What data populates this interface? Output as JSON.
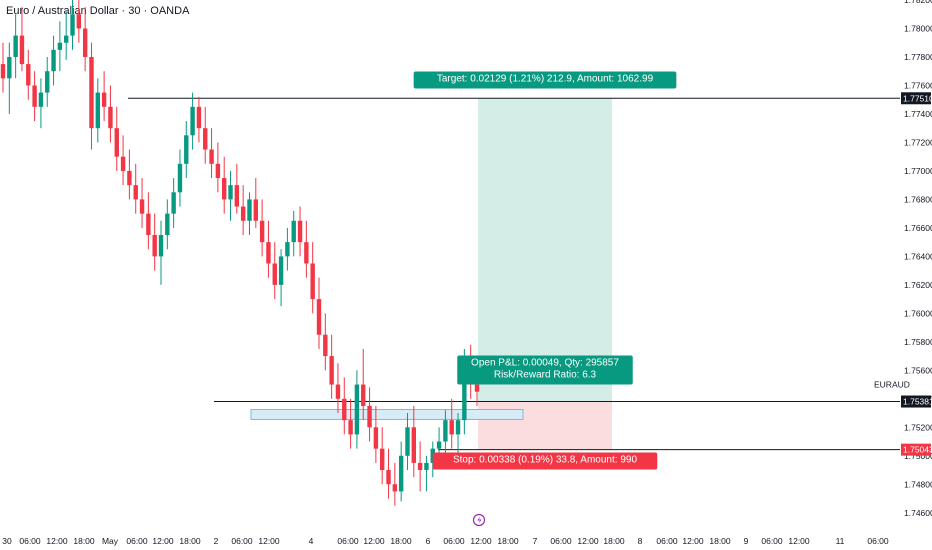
{
  "header": {
    "title": "Euro / Australian Dollar · 30 · OANDA"
  },
  "chart_data": {
    "type": "candlestick",
    "symbol": "EURAUD",
    "y_range": [
      1.745,
      1.782
    ],
    "y_ticks": [
      "1.74600",
      "1.74800",
      "1.75000",
      "1.75200",
      "1.75400",
      "1.75600",
      "1.75800",
      "1.76000",
      "1.76200",
      "1.76400",
      "1.76600",
      "1.76800",
      "1.77000",
      "1.77200",
      "1.77400",
      "1.77600",
      "1.77800",
      "1.78000",
      "1.78200"
    ],
    "x_ticks": [
      "30",
      "06:00",
      "12:00",
      "18:00",
      "May",
      "06:00",
      "12:00",
      "18:00",
      "2",
      "06:00",
      "12:00",
      "4",
      "06:00",
      "12:00",
      "18:00",
      "6",
      "06:00",
      "12:00",
      "18:00",
      "7",
      "06:00",
      "12:00",
      "18:00",
      "8",
      "06:00",
      "12:00",
      "18:00",
      "9",
      "06:00",
      "12:00",
      "11",
      "06:00"
    ],
    "candles": [
      [
        1.7775,
        1.779,
        1.7755,
        1.7765
      ],
      [
        1.7765,
        1.779,
        1.774,
        1.778
      ],
      [
        1.778,
        1.781,
        1.7765,
        1.7795
      ],
      [
        1.7795,
        1.7815,
        1.777,
        1.7775
      ],
      [
        1.7775,
        1.7785,
        1.775,
        1.776
      ],
      [
        1.776,
        1.777,
        1.7735,
        1.7745
      ],
      [
        1.7745,
        1.7765,
        1.773,
        1.7755
      ],
      [
        1.7755,
        1.778,
        1.7745,
        1.777
      ],
      [
        1.777,
        1.7795,
        1.776,
        1.7785
      ],
      [
        1.7785,
        1.7805,
        1.777,
        1.779
      ],
      [
        1.779,
        1.7812,
        1.7778,
        1.7795
      ],
      [
        1.7795,
        1.7825,
        1.7785,
        1.781
      ],
      [
        1.781,
        1.783,
        1.779,
        1.78
      ],
      [
        1.78,
        1.7815,
        1.777,
        1.778
      ],
      [
        1.778,
        1.779,
        1.7715,
        1.773
      ],
      [
        1.773,
        1.7765,
        1.772,
        1.7755
      ],
      [
        1.7755,
        1.777,
        1.7735,
        1.7745
      ],
      [
        1.7745,
        1.776,
        1.772,
        1.773
      ],
      [
        1.773,
        1.7745,
        1.77,
        1.771
      ],
      [
        1.771,
        1.7725,
        1.769,
        1.77
      ],
      [
        1.77,
        1.7715,
        1.768,
        1.769
      ],
      [
        1.769,
        1.7705,
        1.767,
        1.768
      ],
      [
        1.768,
        1.7695,
        1.766,
        1.767
      ],
      [
        1.767,
        1.7685,
        1.7645,
        1.7655
      ],
      [
        1.7655,
        1.767,
        1.763,
        1.764
      ],
      [
        1.764,
        1.7665,
        1.762,
        1.7655
      ],
      [
        1.7655,
        1.768,
        1.7645,
        1.767
      ],
      [
        1.767,
        1.7695,
        1.766,
        1.7685
      ],
      [
        1.7685,
        1.7715,
        1.7675,
        1.7705
      ],
      [
        1.7705,
        1.7735,
        1.7695,
        1.7725
      ],
      [
        1.7725,
        1.7755,
        1.7715,
        1.7745
      ],
      [
        1.7745,
        1.7752,
        1.772,
        1.773
      ],
      [
        1.773,
        1.7745,
        1.7705,
        1.7715
      ],
      [
        1.7715,
        1.773,
        1.7695,
        1.7705
      ],
      [
        1.7705,
        1.772,
        1.7685,
        1.7695
      ],
      [
        1.7695,
        1.771,
        1.767,
        1.768
      ],
      [
        1.768,
        1.77,
        1.7665,
        1.769
      ],
      [
        1.769,
        1.7705,
        1.767,
        1.7675
      ],
      [
        1.7675,
        1.769,
        1.7655,
        1.7665
      ],
      [
        1.7665,
        1.7685,
        1.7655,
        1.768
      ],
      [
        1.768,
        1.7695,
        1.766,
        1.7665
      ],
      [
        1.7665,
        1.768,
        1.764,
        1.765
      ],
      [
        1.765,
        1.7665,
        1.7625,
        1.7635
      ],
      [
        1.7635,
        1.765,
        1.761,
        1.762
      ],
      [
        1.762,
        1.7645,
        1.7605,
        1.764
      ],
      [
        1.764,
        1.766,
        1.763,
        1.765
      ],
      [
        1.765,
        1.7672,
        1.764,
        1.7665
      ],
      [
        1.7665,
        1.7675,
        1.764,
        1.765
      ],
      [
        1.765,
        1.7665,
        1.7625,
        1.7635
      ],
      [
        1.7635,
        1.765,
        1.76,
        1.761
      ],
      [
        1.761,
        1.7625,
        1.7575,
        1.7585
      ],
      [
        1.7585,
        1.76,
        1.756,
        1.757
      ],
      [
        1.757,
        1.7585,
        1.754,
        1.755
      ],
      [
        1.755,
        1.7565,
        1.753,
        1.754
      ],
      [
        1.754,
        1.7555,
        1.7515,
        1.7525
      ],
      [
        1.7525,
        1.754,
        1.7505,
        1.7515
      ],
      [
        1.7515,
        1.756,
        1.7505,
        1.755
      ],
      [
        1.755,
        1.7575,
        1.7525,
        1.7535
      ],
      [
        1.7535,
        1.7548,
        1.751,
        1.752
      ],
      [
        1.752,
        1.7535,
        1.7495,
        1.7505
      ],
      [
        1.7505,
        1.752,
        1.748,
        1.749
      ],
      [
        1.749,
        1.7505,
        1.747,
        1.748
      ],
      [
        1.748,
        1.7495,
        1.7465,
        1.7475
      ],
      [
        1.7475,
        1.751,
        1.7468,
        1.75
      ],
      [
        1.75,
        1.753,
        1.749,
        1.752
      ],
      [
        1.752,
        1.7535,
        1.7485,
        1.7495
      ],
      [
        1.7495,
        1.751,
        1.7475,
        1.749
      ],
      [
        1.749,
        1.75,
        1.7475,
        1.7495
      ],
      [
        1.7495,
        1.751,
        1.7485,
        1.7505
      ],
      [
        1.7505,
        1.752,
        1.7495,
        1.751
      ],
      [
        1.751,
        1.7532,
        1.75,
        1.7525
      ],
      [
        1.7525,
        1.754,
        1.7505,
        1.7515
      ],
      [
        1.7515,
        1.753,
        1.75,
        1.7525
      ],
      [
        1.7525,
        1.7575,
        1.7515,
        1.7565
      ],
      [
        1.7565,
        1.7578,
        1.754,
        1.755
      ],
      [
        1.755,
        1.7562,
        1.7535,
        1.7545
      ]
    ],
    "target_line": {
      "price": 1.7751,
      "label": "1.77510"
    },
    "current_price": {
      "price": 1.75381,
      "label": "1.75381",
      "symbol_label": "EURAUD"
    },
    "stop_line": {
      "price": 1.75043,
      "label": "1.75043"
    },
    "position": {
      "entry": 1.75381,
      "target": 1.7751,
      "stop": 1.75043,
      "target_label": "Target: 0.02129 (1.21%) 212.9, Amount: 1062.99",
      "pnl_label": "Open P&L: 0.00049, Qty: 295857",
      "rr_label": "Risk/Reward Ratio: 6.3",
      "stop_label": "Stop: 0.00338 (0.19%) 33.8, Amount: 990"
    },
    "zone": {
      "top": 1.75325,
      "bottom": 1.75255
    },
    "colors": {
      "up": "#089981",
      "down": "#f23645",
      "target_fill": "#d4ede6",
      "stop_fill": "#fbdde0",
      "zone_fill": "#d8ecf8",
      "zone_stroke": "#7fb7e0",
      "event": "#9c27b0"
    }
  }
}
